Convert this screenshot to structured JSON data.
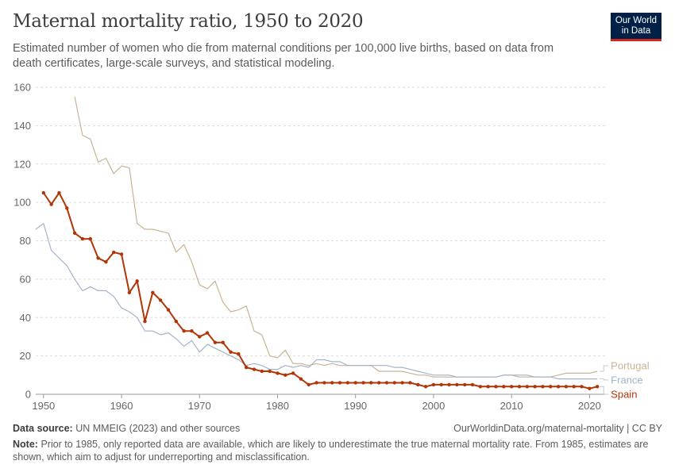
{
  "header": {
    "title": "Maternal mortality ratio, 1950 to 2020",
    "subtitle": "Estimated number of women who die from maternal conditions per 100,000 live births, based on data from death certificates, large-scale surveys, and statistical modeling.",
    "logo_line1": "Our World",
    "logo_line2": "in Data"
  },
  "footer": {
    "source_label": "Data source:",
    "source_text": "UN MMEIG (2023) and other sources",
    "url_text": "OurWorldinData.org/maternal-mortality | CC BY",
    "note_label": "Note:",
    "note_text": "Prior to 1985, only reported data are available, which are likely to underestimate the true maternal mortality rate. From 1985, estimates are shown, which aim to adjust for underreporting and misclassification."
  },
  "chart_data": {
    "type": "line",
    "title": "Maternal mortality ratio, 1950 to 2020",
    "xlim": [
      1949,
      2022
    ],
    "ylim": [
      0,
      160
    ],
    "xticks": [
      1950,
      1960,
      1970,
      1980,
      1990,
      2000,
      2010,
      2020
    ],
    "yticks": [
      0,
      20,
      40,
      60,
      80,
      100,
      120,
      140,
      160
    ],
    "grid": "horizontal dashed",
    "legend": "right, end-of-line labels",
    "series": [
      {
        "name": "Portugal",
        "color": "#c9b391",
        "markers": false,
        "x": [
          1954,
          1955,
          1956,
          1957,
          1958,
          1959,
          1960,
          1961,
          1962,
          1963,
          1964,
          1965,
          1966,
          1967,
          1968,
          1969,
          1970,
          1971,
          1972,
          1973,
          1974,
          1975,
          1976,
          1977,
          1978,
          1979,
          1980,
          1981,
          1982,
          1983,
          1984,
          1985,
          1986,
          1987,
          1988,
          1989,
          1990,
          1991,
          1992,
          1993,
          1994,
          1995,
          1996,
          1997,
          1998,
          1999,
          2000,
          2001,
          2002,
          2003,
          2004,
          2005,
          2006,
          2007,
          2008,
          2009,
          2010,
          2011,
          2012,
          2013,
          2014,
          2015,
          2016,
          2017,
          2018,
          2019,
          2020,
          2021
        ],
        "y": [
          155,
          135,
          133,
          121,
          123,
          115,
          119,
          118,
          89,
          86,
          86,
          85,
          84,
          74,
          78,
          69,
          57,
          55,
          59,
          48,
          43,
          44,
          46,
          33,
          31,
          20,
          19,
          23,
          16,
          16,
          15,
          16,
          15,
          16,
          15,
          15,
          15,
          15,
          15,
          12,
          12,
          12,
          12,
          11,
          10,
          10,
          9,
          9,
          9,
          9,
          9,
          9,
          9,
          9,
          9,
          10,
          10,
          9,
          9,
          9,
          9,
          9,
          10,
          11,
          11,
          11,
          11,
          12
        ]
      },
      {
        "name": "France",
        "color": "#a2b4cc",
        "markers": false,
        "x": [
          1949,
          1950,
          1951,
          1952,
          1953,
          1954,
          1955,
          1956,
          1957,
          1958,
          1959,
          1960,
          1961,
          1962,
          1963,
          1964,
          1965,
          1966,
          1967,
          1968,
          1969,
          1970,
          1971,
          1972,
          1973,
          1974,
          1975,
          1976,
          1977,
          1978,
          1979,
          1980,
          1981,
          1982,
          1983,
          1984,
          1985,
          1986,
          1987,
          1988,
          1989,
          1990,
          1991,
          1992,
          1993,
          1994,
          1995,
          1996,
          1997,
          1998,
          1999,
          2000,
          2001,
          2002,
          2003,
          2004,
          2005,
          2006,
          2007,
          2008,
          2009,
          2010,
          2011,
          2012,
          2013,
          2014,
          2015,
          2016,
          2017,
          2018,
          2019,
          2020,
          2021
        ],
        "y": [
          86,
          89,
          75,
          71,
          67,
          60,
          54,
          56,
          54,
          54,
          51,
          45,
          43,
          40,
          33,
          33,
          31,
          32,
          29,
          25,
          28,
          22,
          26,
          24,
          22,
          20,
          18,
          15,
          16,
          15,
          13,
          13,
          15,
          14,
          15,
          14,
          18,
          18,
          17,
          17,
          15,
          15,
          15,
          15,
          15,
          15,
          14,
          14,
          13,
          12,
          11,
          10,
          10,
          10,
          9,
          9,
          9,
          9,
          9,
          9,
          10,
          10,
          10,
          10,
          9,
          9,
          9,
          8,
          8,
          8,
          8,
          8,
          8
        ]
      },
      {
        "name": "Spain",
        "color": "#b13507",
        "markers": true,
        "x": [
          1950,
          1951,
          1952,
          1953,
          1954,
          1955,
          1956,
          1957,
          1958,
          1959,
          1960,
          1961,
          1962,
          1963,
          1964,
          1965,
          1966,
          1967,
          1968,
          1969,
          1970,
          1971,
          1972,
          1973,
          1974,
          1975,
          1976,
          1977,
          1978,
          1979,
          1980,
          1981,
          1982,
          1983,
          1984,
          1985,
          1986,
          1987,
          1988,
          1989,
          1990,
          1991,
          1992,
          1993,
          1994,
          1995,
          1996,
          1997,
          1998,
          1999,
          2000,
          2001,
          2002,
          2003,
          2004,
          2005,
          2006,
          2007,
          2008,
          2009,
          2010,
          2011,
          2012,
          2013,
          2014,
          2015,
          2016,
          2017,
          2018,
          2019,
          2020,
          2021
        ],
        "y": [
          105,
          99,
          105,
          97,
          84,
          81,
          81,
          71,
          69,
          74,
          73,
          53,
          59,
          38,
          53,
          49,
          44,
          38,
          33,
          33,
          30,
          32,
          27,
          27,
          22,
          21,
          14,
          13,
          12,
          12,
          11,
          10,
          11,
          8,
          5,
          6,
          6,
          6,
          6,
          6,
          6,
          6,
          6,
          6,
          6,
          6,
          6,
          6,
          5,
          4,
          5,
          5,
          5,
          5,
          5,
          5,
          4,
          4,
          4,
          4,
          4,
          4,
          4,
          4,
          4,
          4,
          4,
          4,
          4,
          4,
          3,
          4
        ]
      }
    ]
  }
}
